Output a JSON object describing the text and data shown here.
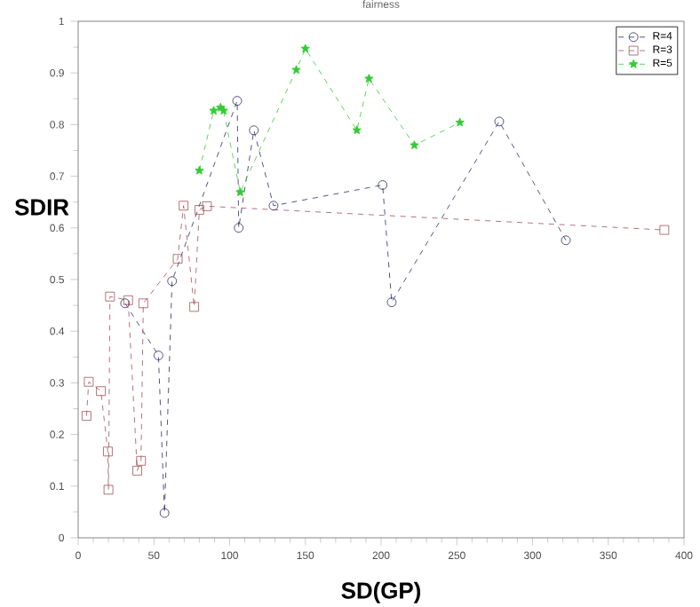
{
  "chart_data": {
    "type": "line",
    "title": "fairness",
    "xlabel": "SD(GP)",
    "ylabel": "SDIR",
    "xlim": [
      0,
      400
    ],
    "xticks": [
      0,
      50,
      100,
      150,
      200,
      250,
      300,
      350,
      400
    ],
    "ylim": [
      0,
      1
    ],
    "yticks": [
      0,
      0.1,
      0.2,
      0.3,
      0.4,
      0.5,
      0.6,
      0.7,
      0.8,
      0.9,
      1
    ],
    "grid": false,
    "legend": "top right",
    "line_style": "dashed",
    "series": [
      {
        "name": "R=4",
        "color": "#2a2a66",
        "marker": "circle",
        "x": [
          31,
          53,
          57,
          62,
          105,
          106,
          116,
          129,
          201,
          207,
          278,
          322
        ],
        "values": [
          0.454,
          0.353,
          0.048,
          0.497,
          0.846,
          0.6,
          0.789,
          0.643,
          0.683,
          0.456,
          0.806,
          0.576
        ]
      },
      {
        "name": "R=3",
        "color": "#a0505a",
        "marker": "square",
        "x": [
          5.5,
          7,
          15,
          19.6,
          20,
          21,
          33,
          39,
          41.5,
          43,
          65.7,
          69.6,
          76.6,
          80,
          85,
          387
        ],
        "values": [
          0.236,
          0.302,
          0.284,
          0.167,
          0.093,
          0.467,
          0.46,
          0.13,
          0.149,
          0.454,
          0.54,
          0.643,
          0.447,
          0.635,
          0.642,
          0.596
        ]
      },
      {
        "name": "R=5",
        "color": "#33cc33",
        "marker": "star",
        "x": [
          80,
          89.5,
          94,
          96,
          107,
          144,
          150,
          184,
          192,
          222,
          252
        ],
        "values": [
          0.711,
          0.827,
          0.833,
          0.827,
          0.669,
          0.906,
          0.947,
          0.789,
          0.889,
          0.76,
          0.804
        ]
      }
    ]
  }
}
